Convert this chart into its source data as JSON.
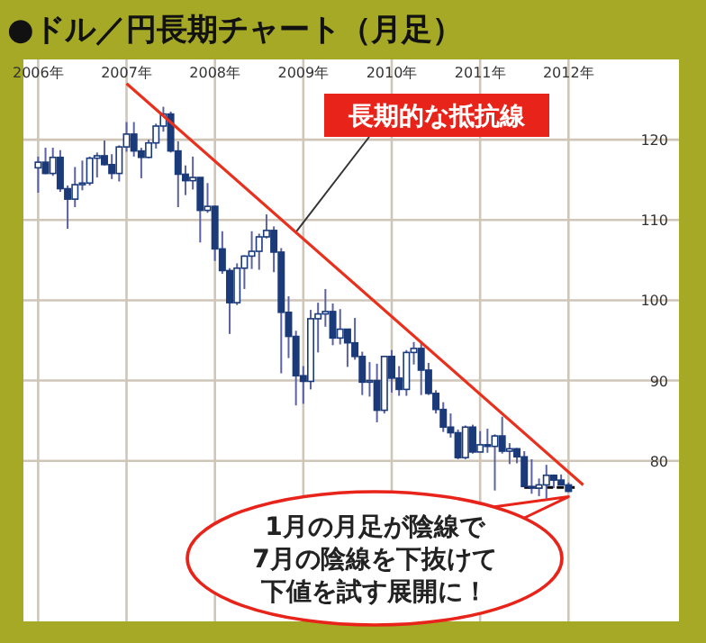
{
  "chart_data": {
    "type": "candlestick",
    "title": "●ドル／円長期チャート（月足）",
    "x": [
      "2006-01",
      "2006-02",
      "2006-03",
      "2006-04",
      "2006-05",
      "2006-06",
      "2006-07",
      "2006-08",
      "2006-09",
      "2006-10",
      "2006-11",
      "2006-12",
      "2007-01",
      "2007-02",
      "2007-03",
      "2007-04",
      "2007-05",
      "2007-06",
      "2007-07",
      "2007-08",
      "2007-09",
      "2007-10",
      "2007-11",
      "2007-12",
      "2008-01",
      "2008-02",
      "2008-03",
      "2008-04",
      "2008-05",
      "2008-06",
      "2008-07",
      "2008-08",
      "2008-09",
      "2008-10",
      "2008-11",
      "2008-12",
      "2009-01",
      "2009-02",
      "2009-03",
      "2009-04",
      "2009-05",
      "2009-06",
      "2009-07",
      "2009-08",
      "2009-09",
      "2009-10",
      "2009-11",
      "2009-12",
      "2010-01",
      "2010-02",
      "2010-03",
      "2010-04",
      "2010-05",
      "2010-06",
      "2010-07",
      "2010-08",
      "2010-09",
      "2010-10",
      "2010-11",
      "2010-12",
      "2011-01",
      "2011-02",
      "2011-03",
      "2011-04",
      "2011-05",
      "2011-06",
      "2011-07",
      "2011-08",
      "2011-09",
      "2011-10",
      "2011-11",
      "2011-12",
      "2012-01"
    ],
    "ohlc": [
      [
        116.5,
        117.9,
        113.4,
        117.2
      ],
      [
        117.2,
        119.0,
        115.7,
        115.8
      ],
      [
        115.8,
        119.0,
        115.5,
        117.8
      ],
      [
        117.8,
        118.7,
        113.5,
        113.9
      ],
      [
        113.9,
        114.3,
        108.9,
        112.6
      ],
      [
        112.6,
        116.6,
        111.6,
        114.4
      ],
      [
        114.4,
        117.4,
        113.7,
        114.6
      ],
      [
        114.6,
        117.9,
        114.3,
        117.7
      ],
      [
        117.7,
        118.4,
        115.3,
        118.0
      ],
      [
        118.0,
        119.9,
        116.8,
        116.9
      ],
      [
        116.9,
        118.2,
        115.1,
        115.8
      ],
      [
        115.8,
        119.3,
        114.8,
        119.1
      ],
      [
        119.1,
        122.2,
        118.5,
        120.7
      ],
      [
        120.7,
        122.2,
        117.9,
        118.6
      ],
      [
        118.6,
        119.0,
        115.2,
        117.8
      ],
      [
        117.8,
        120.0,
        117.7,
        119.6
      ],
      [
        119.6,
        122.0,
        118.9,
        121.7
      ],
      [
        121.7,
        124.1,
        121.0,
        123.2
      ],
      [
        123.2,
        123.5,
        118.4,
        118.6
      ],
      [
        118.6,
        119.8,
        111.6,
        115.7
      ],
      [
        115.7,
        116.8,
        113.1,
        114.9
      ],
      [
        114.9,
        117.9,
        113.8,
        115.3
      ],
      [
        115.3,
        115.3,
        107.2,
        111.2
      ],
      [
        111.2,
        114.6,
        110.9,
        111.7
      ],
      [
        111.7,
        111.8,
        104.9,
        106.4
      ],
      [
        106.4,
        108.6,
        103.3,
        103.7
      ],
      [
        103.7,
        104.0,
        95.8,
        99.7
      ],
      [
        99.7,
        104.6,
        99.4,
        104.0
      ],
      [
        104.0,
        105.6,
        101.4,
        105.5
      ],
      [
        105.5,
        108.6,
        103.9,
        106.1
      ],
      [
        106.1,
        108.3,
        103.8,
        107.9
      ],
      [
        107.9,
        110.7,
        107.7,
        108.7
      ],
      [
        108.7,
        109.2,
        103.5,
        106.0
      ],
      [
        106.0,
        106.5,
        90.9,
        98.5
      ],
      [
        98.5,
        100.5,
        92.8,
        95.5
      ],
      [
        95.5,
        96.2,
        86.9,
        90.6
      ],
      [
        90.6,
        91.8,
        87.1,
        89.9
      ],
      [
        89.9,
        98.8,
        88.9,
        97.7
      ],
      [
        97.7,
        99.7,
        93.5,
        98.3
      ],
      [
        98.3,
        101.4,
        96.7,
        98.6
      ],
      [
        98.6,
        99.6,
        94.4,
        95.3
      ],
      [
        95.3,
        98.9,
        94.5,
        96.4
      ],
      [
        96.4,
        96.4,
        91.7,
        94.7
      ],
      [
        94.7,
        97.8,
        92.6,
        93.0
      ],
      [
        93.0,
        93.6,
        88.2,
        89.8
      ],
      [
        89.8,
        92.3,
        88.0,
        90.0
      ],
      [
        90.0,
        92.1,
        84.8,
        86.3
      ],
      [
        86.3,
        93.1,
        85.9,
        93.0
      ],
      [
        93.0,
        93.8,
        88.5,
        90.3
      ],
      [
        90.3,
        91.8,
        88.1,
        88.9
      ],
      [
        88.9,
        93.8,
        88.1,
        93.5
      ],
      [
        93.5,
        94.8,
        92.0,
        94.0
      ],
      [
        94.0,
        94.9,
        88.2,
        91.3
      ],
      [
        91.3,
        92.2,
        88.2,
        88.4
      ],
      [
        88.4,
        88.8,
        85.9,
        86.4
      ],
      [
        86.4,
        87.3,
        83.6,
        84.2
      ],
      [
        84.2,
        85.9,
        82.9,
        83.5
      ],
      [
        83.5,
        83.9,
        80.2,
        80.4
      ],
      [
        80.4,
        84.4,
        80.2,
        84.2
      ],
      [
        84.2,
        84.5,
        80.9,
        81.1
      ],
      [
        81.1,
        83.7,
        81.1,
        82.0
      ],
      [
        82.0,
        84.0,
        81.0,
        81.8
      ],
      [
        81.8,
        83.3,
        76.3,
        83.1
      ],
      [
        83.1,
        85.5,
        80.9,
        81.2
      ],
      [
        81.2,
        82.2,
        79.6,
        81.5
      ],
      [
        81.5,
        81.6,
        79.7,
        80.5
      ],
      [
        80.5,
        81.2,
        76.7,
        76.8
      ],
      [
        76.8,
        80.2,
        75.9,
        76.6
      ],
      [
        76.6,
        77.8,
        75.6,
        77.0
      ],
      [
        77.0,
        79.5,
        75.3,
        78.2
      ],
      [
        78.2,
        78.3,
        76.6,
        77.6
      ],
      [
        77.6,
        78.3,
        77.0,
        77.0
      ],
      [
        77.0,
        77.3,
        76.1,
        76.2
      ]
    ],
    "series": [
      {
        "type": "line",
        "x": [
          "2007-01",
          "2012-03"
        ],
        "values": [
          127,
          77
        ],
        "color": "#e8301c"
      },
      {
        "type": "line",
        "x": [
          "2011-07",
          "2012-02"
        ],
        "values": [
          76.7,
          76.7
        ],
        "color": "#000000",
        "line_style": "dashed"
      }
    ],
    "annotations": [
      {
        "text": "長期的な抵抗線",
        "x": "2008-12",
        "y": 108.5
      },
      {
        "text": "1月の月足が陰線で",
        "x": "2012-01",
        "y": 76.2
      },
      "7月の陰線を下抜けて",
      "下値を試す展開に！"
    ],
    "xlim": [
      "2005-11",
      "2013-04"
    ],
    "ylim": [
      60,
      130
    ],
    "xticks": [
      {
        "value": "2006-01",
        "label": "2006年"
      },
      {
        "value": "2007-01",
        "label": "2007年"
      },
      {
        "value": "2008-01",
        "label": "2008年"
      },
      {
        "value": "2009-01",
        "label": "2009年"
      },
      {
        "value": "2010-01",
        "label": "2010年"
      },
      {
        "value": "2011-01",
        "label": "2011年"
      },
      {
        "value": "2012-01",
        "label": "2012年"
      }
    ],
    "yticks": [
      80,
      90,
      100,
      110,
      120
    ],
    "grid": true
  }
}
